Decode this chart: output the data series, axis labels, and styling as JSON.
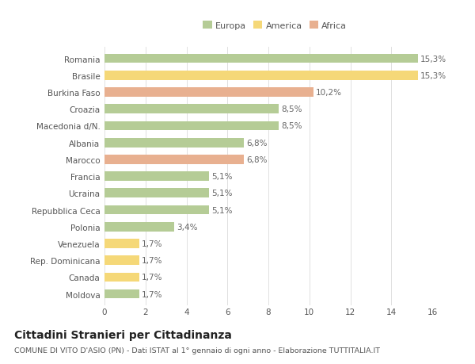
{
  "categories": [
    "Romania",
    "Brasile",
    "Burkina Faso",
    "Croazia",
    "Macedonia d/N.",
    "Albania",
    "Marocco",
    "Francia",
    "Ucraina",
    "Repubblica Ceca",
    "Polonia",
    "Venezuela",
    "Rep. Dominicana",
    "Canada",
    "Moldova"
  ],
  "values": [
    15.3,
    15.3,
    10.2,
    8.5,
    8.5,
    6.8,
    6.8,
    5.1,
    5.1,
    5.1,
    3.4,
    1.7,
    1.7,
    1.7,
    1.7
  ],
  "labels": [
    "15,3%",
    "15,3%",
    "10,2%",
    "8,5%",
    "8,5%",
    "6,8%",
    "6,8%",
    "5,1%",
    "5,1%",
    "5,1%",
    "3,4%",
    "1,7%",
    "1,7%",
    "1,7%",
    "1,7%"
  ],
  "continents": [
    "Europa",
    "America",
    "Africa",
    "Europa",
    "Europa",
    "Europa",
    "Africa",
    "Europa",
    "Europa",
    "Europa",
    "Europa",
    "America",
    "America",
    "America",
    "Europa"
  ],
  "colors": {
    "Europa": "#b5cc96",
    "America": "#f5d878",
    "Africa": "#e8b090"
  },
  "legend_order": [
    "Europa",
    "America",
    "Africa"
  ],
  "title": "Cittadini Stranieri per Cittadinanza",
  "subtitle": "COMUNE DI VITO D'ASIO (PN) - Dati ISTAT al 1° gennaio di ogni anno - Elaborazione TUTTITALIA.IT",
  "xlim": [
    0,
    16
  ],
  "xticks": [
    0,
    2,
    4,
    6,
    8,
    10,
    12,
    14,
    16
  ],
  "background_color": "#ffffff",
  "grid_color": "#e0e0e0",
  "bar_height": 0.55,
  "label_fontsize": 7.5,
  "ytick_fontsize": 7.5,
  "xtick_fontsize": 7.5,
  "title_fontsize": 10,
  "subtitle_fontsize": 6.8,
  "legend_fontsize": 8
}
